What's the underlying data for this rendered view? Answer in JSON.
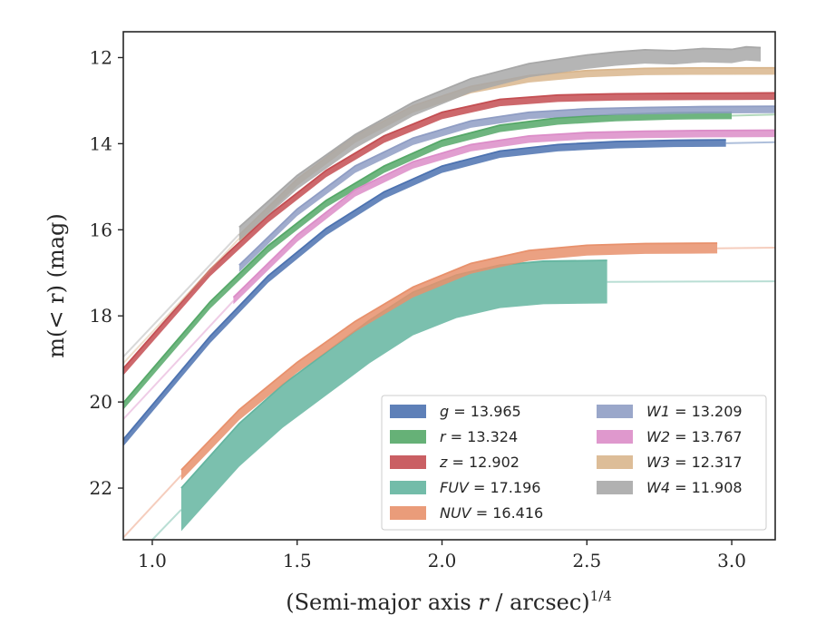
{
  "chart_data": {
    "type": "line",
    "title": "",
    "xlabel": "(Semi-major axis r / arcsec)",
    "xlabel_var": "r",
    "xlabel_exponent": "1/4",
    "ylabel": "m(< r) (mag)",
    "xlim": [
      0.9,
      3.15
    ],
    "ylim": [
      23.2,
      11.4
    ],
    "y_inverted": true,
    "xticks": [
      1.0,
      1.5,
      2.0,
      2.5,
      3.0
    ],
    "xtick_labels": [
      "1.0",
      "1.5",
      "2.0",
      "2.5",
      "3.0"
    ],
    "yticks": [
      12,
      14,
      16,
      18,
      20,
      22
    ],
    "ytick_labels": [
      "12",
      "14",
      "16",
      "18",
      "20",
      "22"
    ],
    "grid": false,
    "legend_position": "lower-right",
    "legend_columns": 2,
    "series": [
      {
        "name": "g",
        "label": "g = 13.965",
        "color": "#4c72b0",
        "band": 0.08,
        "x": [
          0.9,
          1.2,
          1.4,
          1.6,
          1.8,
          2.0,
          2.2,
          2.4,
          2.6,
          2.8,
          2.98
        ],
        "y": [
          20.95,
          18.55,
          17.15,
          16.05,
          15.2,
          14.6,
          14.25,
          14.1,
          14.03,
          14.0,
          13.99
        ],
        "ext_x": [
          2.98,
          3.15
        ],
        "ext_y": [
          13.99,
          13.965
        ]
      },
      {
        "name": "r",
        "label": "r = 13.324",
        "color": "#55a868",
        "band": 0.08,
        "x": [
          0.9,
          1.2,
          1.4,
          1.6,
          1.8,
          2.0,
          2.2,
          2.4,
          2.6,
          2.8,
          3.0
        ],
        "y": [
          20.1,
          17.75,
          16.45,
          15.4,
          14.6,
          14.0,
          13.65,
          13.48,
          13.4,
          13.36,
          13.35
        ],
        "ext_x": [
          3.0,
          3.15
        ],
        "ext_y": [
          13.35,
          13.324
        ]
      },
      {
        "name": "z",
        "label": "z = 12.902",
        "color": "#c44e52",
        "band": 0.08,
        "x": [
          0.9,
          1.2,
          1.4,
          1.6,
          1.8,
          2.0,
          2.2,
          2.4,
          2.6,
          2.8,
          3.0,
          3.15
        ],
        "y": [
          19.3,
          17.0,
          15.75,
          14.7,
          13.9,
          13.35,
          13.05,
          12.95,
          12.92,
          12.91,
          12.905,
          12.9
        ],
        "ext_x": [],
        "ext_y": []
      },
      {
        "name": "FUV",
        "label": "FUV = 17.196",
        "color": "#64b5a0",
        "band": 0.5,
        "x": [
          1.1,
          1.3,
          1.45,
          1.6,
          1.75,
          1.9,
          2.05,
          2.2,
          2.35,
          2.57
        ],
        "y": [
          22.5,
          21.0,
          20.1,
          19.35,
          18.6,
          17.95,
          17.55,
          17.32,
          17.23,
          17.21
        ],
        "ext_x": [
          1.0,
          1.1,
          2.57,
          3.15
        ],
        "ext_y": [
          23.2,
          22.5,
          17.21,
          17.196
        ]
      },
      {
        "name": "NUV",
        "label": "NUV = 16.416",
        "color": "#e8916c",
        "band": 0.12,
        "x": [
          1.1,
          1.3,
          1.5,
          1.7,
          1.9,
          2.1,
          2.3,
          2.5,
          2.7,
          2.95
        ],
        "y": [
          21.7,
          20.3,
          19.2,
          18.25,
          17.45,
          16.9,
          16.6,
          16.48,
          16.44,
          16.43
        ],
        "ext_x": [
          0.9,
          1.1,
          2.95,
          3.15
        ],
        "ext_y": [
          23.15,
          21.7,
          16.43,
          16.416
        ]
      },
      {
        "name": "W1",
        "label": "W1 = 13.209",
        "color": "#8f9dc4",
        "band": 0.08,
        "x": [
          1.3,
          1.5,
          1.7,
          1.9,
          2.1,
          2.3,
          2.5,
          2.7,
          2.9,
          3.15
        ],
        "y": [
          16.9,
          15.6,
          14.6,
          13.95,
          13.55,
          13.35,
          13.27,
          13.24,
          13.22,
          13.21
        ],
        "ext_x": [],
        "ext_y": []
      },
      {
        "name": "W2",
        "label": "W2 = 13.767",
        "color": "#dc8dc8",
        "band": 0.08,
        "x": [
          1.28,
          1.5,
          1.7,
          1.9,
          2.1,
          2.3,
          2.5,
          2.7,
          2.9,
          3.15
        ],
        "y": [
          17.65,
          16.2,
          15.15,
          14.5,
          14.1,
          13.9,
          13.82,
          13.79,
          13.775,
          13.767
        ],
        "ext_x": [
          0.9,
          1.28
        ],
        "ext_y": [
          20.4,
          17.65
        ]
      },
      {
        "name": "W3",
        "label": "W3 = 12.317",
        "color": "#d9b68d",
        "band": 0.08,
        "x": [
          1.3,
          1.5,
          1.7,
          1.9,
          2.1,
          2.3,
          2.5,
          2.7,
          2.9,
          3.15
        ],
        "y": [
          16.2,
          14.9,
          13.9,
          13.2,
          12.75,
          12.5,
          12.38,
          12.33,
          12.32,
          12.317
        ],
        "ext_x": [
          0.9,
          1.3
        ],
        "ext_y": [
          19.1,
          16.2
        ]
      },
      {
        "name": "W4",
        "label": "W4 = 11.908",
        "color": "#a8a8a8",
        "band": 0.16,
        "x": [
          1.3,
          1.5,
          1.7,
          1.9,
          2.1,
          2.3,
          2.5,
          2.6,
          2.7,
          2.8,
          2.9,
          3.0,
          3.05,
          3.1
        ],
        "y": [
          16.1,
          14.9,
          13.95,
          13.2,
          12.65,
          12.3,
          12.1,
          12.03,
          11.98,
          12.0,
          11.95,
          11.97,
          11.91,
          11.93
        ],
        "ext_x": [
          0.9,
          1.3
        ],
        "ext_y": [
          18.95,
          16.1
        ]
      }
    ]
  }
}
